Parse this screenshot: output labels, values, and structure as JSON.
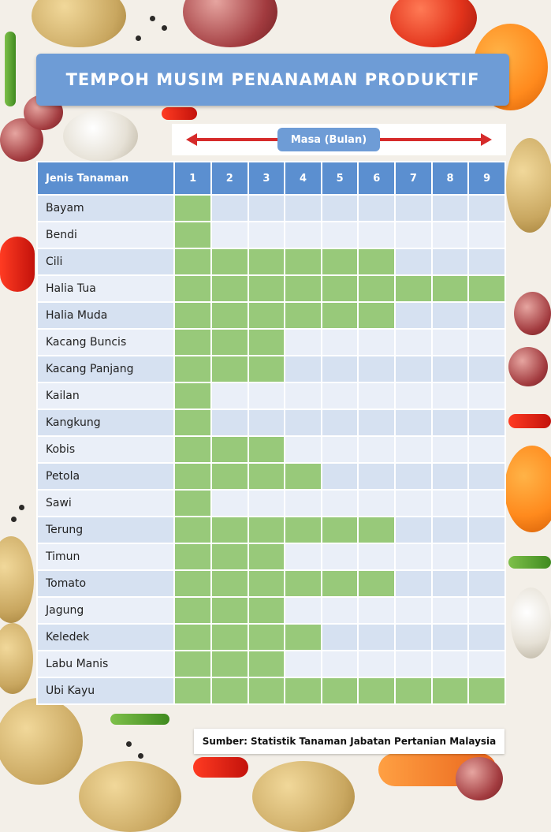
{
  "title": "TEMPOH MUSIM PENANAMAN PRODUKTIF",
  "axis_label": "Masa (Bulan)",
  "source": "Sumber: Statistik Tanaman Jabatan Pertanian Malaysia",
  "colors": {
    "title_bg": "#6e9cd6",
    "header_bg": "#5b8fd0",
    "active_cell": "#98c97a",
    "row_odd": "#d6e1f1",
    "row_even": "#eaeff8",
    "arrow": "#d62b2b"
  },
  "chart_data": {
    "type": "table",
    "title": "TEMPOH MUSIM PENANAMAN PRODUKTIF",
    "column_header": "Jenis Tanaman",
    "months": [
      "1",
      "2",
      "3",
      "4",
      "5",
      "6",
      "7",
      "8",
      "9"
    ],
    "rows": [
      {
        "crop": "Bayam",
        "months": 1
      },
      {
        "crop": "Bendi",
        "months": 1
      },
      {
        "crop": "Cili",
        "months": 6
      },
      {
        "crop": "Halia Tua",
        "months": 9
      },
      {
        "crop": "Halia Muda",
        "months": 6
      },
      {
        "crop": "Kacang Buncis",
        "months": 3
      },
      {
        "crop": "Kacang Panjang",
        "months": 3
      },
      {
        "crop": "Kailan",
        "months": 1
      },
      {
        "crop": "Kangkung",
        "months": 1
      },
      {
        "crop": "Kobis",
        "months": 3
      },
      {
        "crop": "Petola",
        "months": 4
      },
      {
        "crop": "Sawi",
        "months": 1
      },
      {
        "crop": "Terung",
        "months": 6
      },
      {
        "crop": "Timun",
        "months": 3
      },
      {
        "crop": "Tomato",
        "months": 6
      },
      {
        "crop": "Jagung",
        "months": 3
      },
      {
        "crop": "Keledek",
        "months": 4
      },
      {
        "crop": "Labu Manis",
        "months": 3
      },
      {
        "crop": "Ubi Kayu",
        "months": 9
      }
    ]
  }
}
